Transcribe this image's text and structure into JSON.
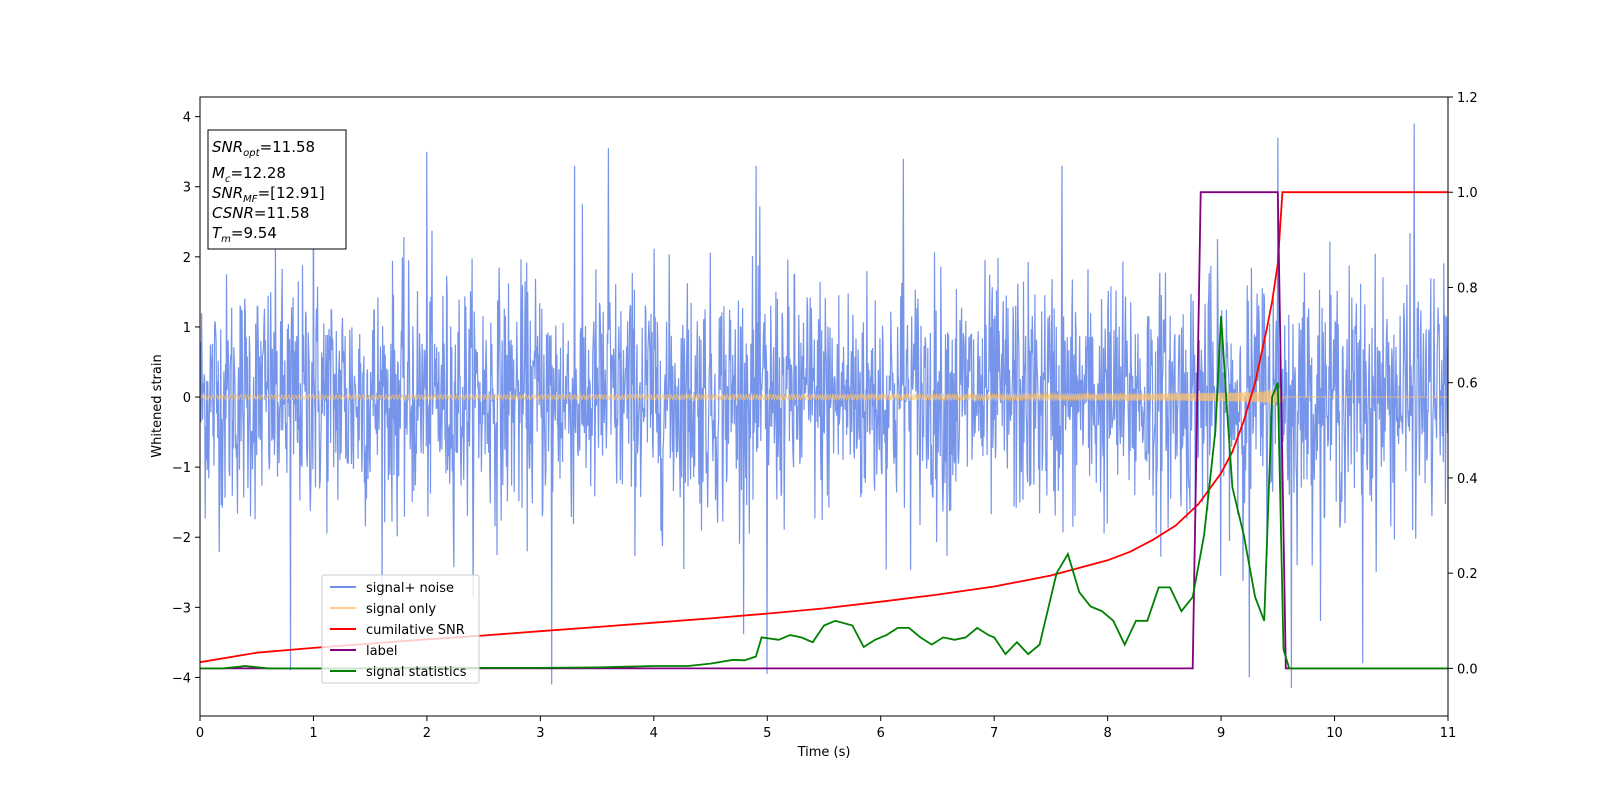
{
  "chart_data": {
    "type": "line",
    "xlabel": "Time (s)",
    "ylabel": "Whitened strain",
    "xlim": [
      0,
      11
    ],
    "ylim_left": [
      -4.55,
      4.28
    ],
    "ylim_right": [
      -0.1,
      1.2
    ],
    "x_ticks": [
      0,
      1,
      2,
      3,
      4,
      5,
      6,
      7,
      8,
      9,
      10,
      11
    ],
    "y_ticks_left": [
      -4,
      -3,
      -2,
      -1,
      0,
      1,
      2,
      3,
      4
    ],
    "y_ticks_right": [
      0.0,
      0.2,
      0.4,
      0.6,
      0.8,
      1.0,
      1.2
    ],
    "grid": false,
    "legend_position": "lower-left",
    "annotation": {
      "snr_opt": {
        "base": "SNR",
        "sub": "opt",
        "value": "=11.58"
      },
      "mc": {
        "base": "M",
        "sub": "c",
        "value": "=12.28"
      },
      "snr_mf": {
        "base": "SNR",
        "sub": "MF",
        "value": "=[12.91]"
      },
      "csnr": {
        "base": "CSNR",
        "sub": "",
        "value": "=11.58"
      },
      "tm": {
        "base": "T",
        "sub": "m",
        "value": "=9.54"
      }
    },
    "series": [
      {
        "name": "signal+ noise",
        "color": "#6f8ee8",
        "axis": "left",
        "kind": "noise",
        "std": 0.85,
        "x_range": [
          0,
          11
        ],
        "notable_peaks": [
          [
            0.8,
            -3.9
          ],
          [
            1.0,
            3.3
          ],
          [
            2.0,
            3.5
          ],
          [
            3.1,
            -4.1
          ],
          [
            3.3,
            3.3
          ],
          [
            3.6,
            3.55
          ],
          [
            4.9,
            3.3
          ],
          [
            5.0,
            -3.95
          ],
          [
            6.2,
            3.4
          ],
          [
            7.6,
            3.3
          ],
          [
            9.25,
            -4.0
          ],
          [
            9.5,
            3.7
          ],
          [
            9.62,
            -4.15
          ],
          [
            10.25,
            -3.8
          ],
          [
            10.7,
            3.9
          ]
        ]
      },
      {
        "name": "signal only",
        "color": "#ffc36b",
        "axis": "left",
        "kind": "chirp",
        "x_range": [
          0,
          9.54
        ],
        "amplitude_start": 0.03,
        "amplitude_end": 1.0,
        "t_merge": 9.54
      },
      {
        "name": "cumilative SNR",
        "color": "#ff0000",
        "axis": "right",
        "x": [
          0,
          0.5,
          1,
          1.5,
          2,
          2.5,
          3,
          3.5,
          4,
          4.5,
          5,
          5.5,
          6,
          6.5,
          7,
          7.5,
          8,
          8.2,
          8.4,
          8.6,
          8.8,
          9.0,
          9.1,
          9.2,
          9.3,
          9.4,
          9.45,
          9.5,
          9.54,
          11
        ],
        "y": [
          0.013,
          0.033,
          0.043,
          0.052,
          0.061,
          0.069,
          0.078,
          0.087,
          0.096,
          0.105,
          0.115,
          0.126,
          0.14,
          0.155,
          0.172,
          0.195,
          0.227,
          0.245,
          0.27,
          0.3,
          0.345,
          0.41,
          0.455,
          0.52,
          0.6,
          0.71,
          0.77,
          0.85,
          1.0,
          1.0
        ]
      },
      {
        "name": "label",
        "color": "#800080",
        "axis": "right",
        "x": [
          0,
          8.75,
          8.82,
          9.5,
          9.57,
          11
        ],
        "y": [
          0,
          0,
          1,
          1,
          0,
          0
        ]
      },
      {
        "name": "signal statistics",
        "color": "#008000",
        "axis": "right",
        "x": [
          0,
          0.2,
          0.4,
          0.6,
          1.0,
          1.5,
          2.0,
          2.5,
          3.0,
          3.5,
          4.0,
          4.3,
          4.5,
          4.7,
          4.8,
          4.9,
          4.95,
          5.1,
          5.2,
          5.3,
          5.4,
          5.5,
          5.6,
          5.75,
          5.85,
          5.95,
          6.05,
          6.15,
          6.25,
          6.35,
          6.45,
          6.55,
          6.65,
          6.75,
          6.85,
          6.95,
          7.0,
          7.1,
          7.2,
          7.3,
          7.4,
          7.55,
          7.65,
          7.75,
          7.85,
          7.95,
          8.05,
          8.15,
          8.25,
          8.35,
          8.45,
          8.55,
          8.65,
          8.75,
          8.85,
          8.95,
          9.0,
          9.05,
          9.1,
          9.2,
          9.3,
          9.38,
          9.45,
          9.5,
          9.55,
          9.6,
          11
        ],
        "y": [
          0.0,
          0.0,
          0.005,
          0.0,
          0.0,
          0.0,
          0.002,
          0.001,
          0.001,
          0.002,
          0.005,
          0.005,
          0.01,
          0.018,
          0.017,
          0.025,
          0.065,
          0.06,
          0.07,
          0.065,
          0.055,
          0.09,
          0.1,
          0.09,
          0.045,
          0.06,
          0.07,
          0.085,
          0.085,
          0.065,
          0.05,
          0.065,
          0.06,
          0.065,
          0.085,
          0.07,
          0.065,
          0.03,
          0.055,
          0.03,
          0.05,
          0.2,
          0.24,
          0.16,
          0.13,
          0.12,
          0.1,
          0.05,
          0.1,
          0.1,
          0.17,
          0.17,
          0.12,
          0.15,
          0.28,
          0.5,
          0.74,
          0.55,
          0.38,
          0.28,
          0.15,
          0.1,
          0.57,
          0.6,
          0.04,
          0.0,
          0.0
        ]
      }
    ]
  }
}
